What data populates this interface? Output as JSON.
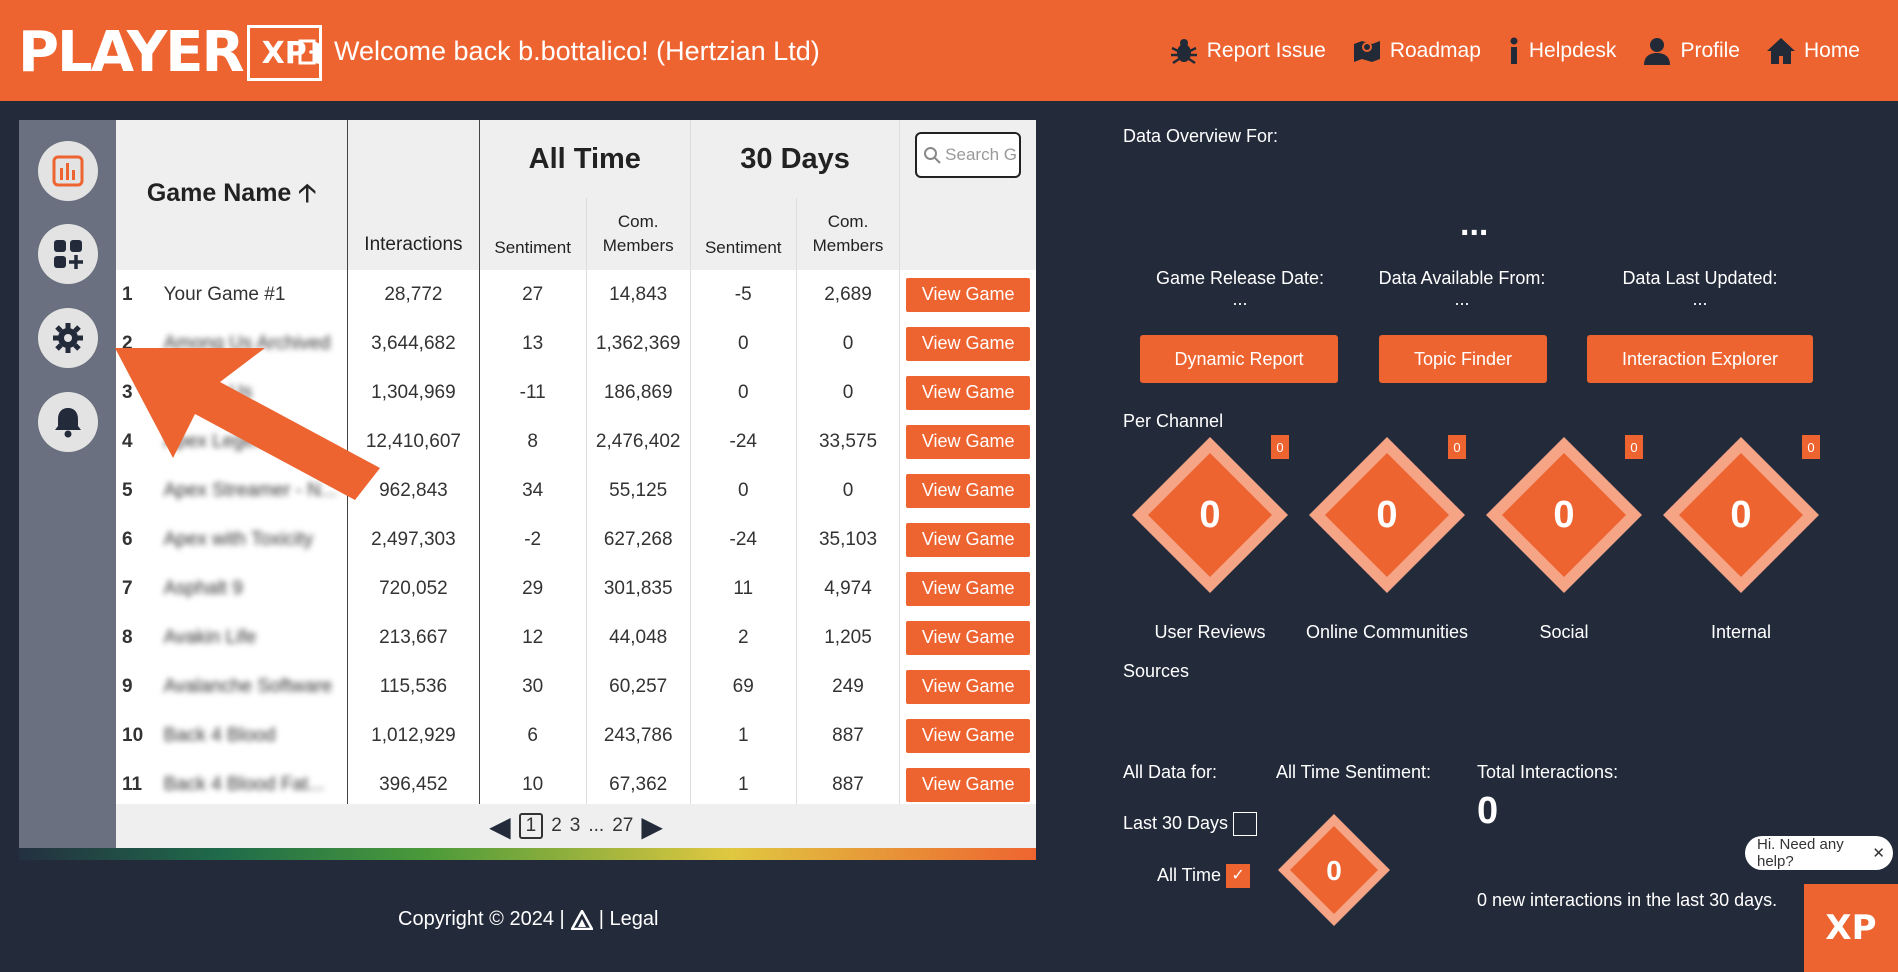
{
  "header": {
    "logo_word": "PLAYER",
    "logo_xp": "XP",
    "welcome": "Welcome back b.bottalico! (Hertzian Ltd)",
    "nav": [
      {
        "label": "Report Issue",
        "icon": "bug-icon"
      },
      {
        "label": "Roadmap",
        "icon": "map-icon"
      },
      {
        "label": "Helpdesk",
        "icon": "info-icon"
      },
      {
        "label": "Profile",
        "icon": "user-icon"
      },
      {
        "label": "Home",
        "icon": "home-icon"
      }
    ]
  },
  "sidebar": {
    "icons": [
      "chart-icon",
      "add-widget-icon",
      "gear-icon",
      "bell-icon"
    ]
  },
  "table": {
    "game_name_header": "Game Name",
    "group_all_time": "All Time",
    "group_30_days": "30 Days",
    "search_placeholder": "Search G",
    "col_interactions": "Interactions",
    "col_sentiment": "Sentiment",
    "col_com_members": "Com. Members",
    "view_label": "View Game",
    "rows": [
      {
        "num": "1",
        "name": "Your Game #1",
        "blur": false,
        "interactions": "28,772",
        "sent_all": "27",
        "com_all": "14,843",
        "sent_30": "-5",
        "com_30": "2,689"
      },
      {
        "num": "2",
        "name": "Among Us Archived",
        "blur": true,
        "interactions": "3,644,682",
        "sent_all": "13",
        "com_all": "1,362,369",
        "sent_30": "0",
        "com_30": "0"
      },
      {
        "num": "3",
        "name": "Among Us",
        "blur": true,
        "interactions": "1,304,969",
        "sent_all": "-11",
        "com_all": "186,869",
        "sent_30": "0",
        "com_30": "0"
      },
      {
        "num": "4",
        "name": "Apex Legends",
        "blur": true,
        "interactions": "12,410,607",
        "sent_all": "8",
        "com_all": "2,476,402",
        "sent_30": "-24",
        "com_30": "33,575"
      },
      {
        "num": "5",
        "name": "Apex Streamer - N...",
        "blur": true,
        "interactions": "962,843",
        "sent_all": "34",
        "com_all": "55,125",
        "sent_30": "0",
        "com_30": "0"
      },
      {
        "num": "6",
        "name": "Apex with Toxicity",
        "blur": true,
        "interactions": "2,497,303",
        "sent_all": "-2",
        "com_all": "627,268",
        "sent_30": "-24",
        "com_30": "35,103"
      },
      {
        "num": "7",
        "name": "Asphalt 9",
        "blur": true,
        "interactions": "720,052",
        "sent_all": "29",
        "com_all": "301,835",
        "sent_30": "11",
        "com_30": "4,974"
      },
      {
        "num": "8",
        "name": "Avakin Life",
        "blur": true,
        "interactions": "213,667",
        "sent_all": "12",
        "com_all": "44,048",
        "sent_30": "2",
        "com_30": "1,205"
      },
      {
        "num": "9",
        "name": "Avalanche Software",
        "blur": true,
        "interactions": "115,536",
        "sent_all": "30",
        "com_all": "60,257",
        "sent_30": "69",
        "com_30": "249"
      },
      {
        "num": "10",
        "name": "Back 4 Blood",
        "blur": true,
        "interactions": "1,012,929",
        "sent_all": "6",
        "com_all": "243,786",
        "sent_30": "1",
        "com_30": "887"
      },
      {
        "num": "11",
        "name": "Back 4 Blood Fat...",
        "blur": true,
        "interactions": "396,452",
        "sent_all": "10",
        "com_all": "67,362",
        "sent_30": "1",
        "com_30": "887"
      }
    ]
  },
  "pager": {
    "current": "1",
    "pages": [
      "2",
      "3"
    ],
    "ellipsis": "...",
    "last": "27"
  },
  "footer": {
    "copyright": "Copyright © 2024 |",
    "legal": "| Legal"
  },
  "overview": {
    "title": "Data Overview For:",
    "loading": "...",
    "release_label": "Game Release Date:",
    "release_value": "...",
    "available_label": "Data Available From:",
    "available_value": "...",
    "updated_label": "Data Last Updated:",
    "updated_value": "...",
    "btn_dynamic": "Dynamic Report",
    "btn_topic": "Topic Finder",
    "btn_interaction": "Interaction Explorer",
    "per_channel": "Per Channel",
    "channels": [
      {
        "label": "User Reviews",
        "value": "0",
        "badge": "0"
      },
      {
        "label": "Online Communities",
        "value": "0",
        "badge": "0"
      },
      {
        "label": "Social",
        "value": "0",
        "badge": "0"
      },
      {
        "label": "Internal",
        "value": "0",
        "badge": "0"
      }
    ],
    "sources": "Sources",
    "all_data_for": "All Data for:",
    "last30": "Last 30 Days",
    "all_time": "All Time",
    "all_time_sentiment": "All Time Sentiment:",
    "sentiment_value": "0",
    "total_interactions_label": "Total Interactions:",
    "total_interactions_value": "0",
    "new_interactions": "0 new interactions in the last 30 days."
  },
  "help": {
    "bubble": "Hi. Need any help?",
    "close": "✕",
    "corner": "XP"
  },
  "colors": {
    "accent": "#ee6430",
    "bg": "#232a3a",
    "sidebar": "#6a707f"
  }
}
